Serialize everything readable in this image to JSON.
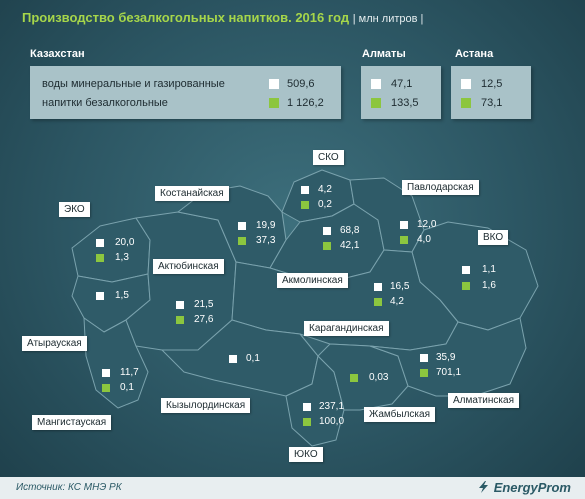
{
  "header": {
    "title": "Производство безалкогольных напитков. 2016 год",
    "unit": "| млн литров |"
  },
  "panels": {
    "kazakhstan": {
      "title": "Казахстан",
      "rows": [
        {
          "label": "воды минеральные и газированные",
          "value": "509,6"
        },
        {
          "label": "напитки безалкогольные",
          "value": "1 126,2"
        }
      ]
    },
    "almaty": {
      "title": "Алматы",
      "values": [
        "47,1",
        "133,5"
      ]
    },
    "astana": {
      "title": "Астана",
      "values": [
        "12,5",
        "73,1"
      ]
    }
  },
  "regions": [
    {
      "name": "ЭКО",
      "mineral": "20,0",
      "soft": "1,3"
    },
    {
      "name": "Атырауская",
      "mineral": "1,5",
      "soft": ""
    },
    {
      "name": "Мангистауская",
      "mineral": "11,7",
      "soft": "0,1"
    },
    {
      "name": "Актюбинская",
      "mineral": "21,5",
      "soft": "27,6"
    },
    {
      "name": "Костанайская",
      "mineral": "19,9",
      "soft": "37,3"
    },
    {
      "name": "СКО",
      "mineral": "4,2",
      "soft": "0,2"
    },
    {
      "name": "Акмолинская",
      "mineral": "68,8",
      "soft": "42,1"
    },
    {
      "name": "Павлодарская",
      "mineral": "12,0",
      "soft": "4,0"
    },
    {
      "name": "ВКО",
      "mineral": "1,1",
      "soft": "1,6"
    },
    {
      "name": "Карагандинская",
      "mineral": "16,5",
      "soft": "4,2"
    },
    {
      "name": "Кызылординская",
      "mineral": "0,1",
      "soft": ""
    },
    {
      "name": "ЮКО",
      "mineral": "237,1",
      "soft": "100,0"
    },
    {
      "name": "Жамбылская",
      "mineral": "",
      "soft": "0,03"
    },
    {
      "name": "Алматинская",
      "mineral": "35,9",
      "soft": "701,1"
    }
  ],
  "footer": {
    "source": "Источник: КС МНЭ РК",
    "brand": "EnergyProm"
  },
  "colors": {
    "background": "#2c5663",
    "title": "#a6d64a",
    "mineral_square": "#ffffff",
    "soft_square": "#8cc63f",
    "region_fill": "#2f5b68",
    "panel": "#a9c2c8"
  }
}
